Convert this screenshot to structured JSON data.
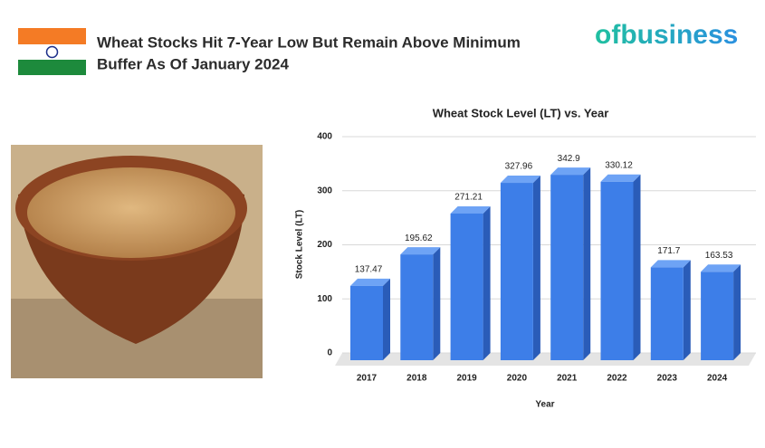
{
  "header": {
    "title_line1": "Wheat Stocks Hit 7-Year Low But Remain Above Minimum",
    "title_line2": "Buffer As Of January 2024",
    "logo": "ofbusiness"
  },
  "chart_data": {
    "type": "bar",
    "title": "Wheat Stock Level (LT) vs. Year",
    "x_label": "Year",
    "y_label": "Stock Level (LT)",
    "categories": [
      "2017",
      "2018",
      "2019",
      "2020",
      "2021",
      "2022",
      "2023",
      "2024"
    ],
    "values": [
      137.47,
      195.62,
      271.21,
      327.96,
      342.9,
      330.12,
      171.7,
      163.53
    ],
    "color": "#3d7ee8",
    "ylim": [
      0,
      400
    ],
    "yticks": [
      0,
      100,
      200,
      300,
      400
    ],
    "grid": true
  }
}
